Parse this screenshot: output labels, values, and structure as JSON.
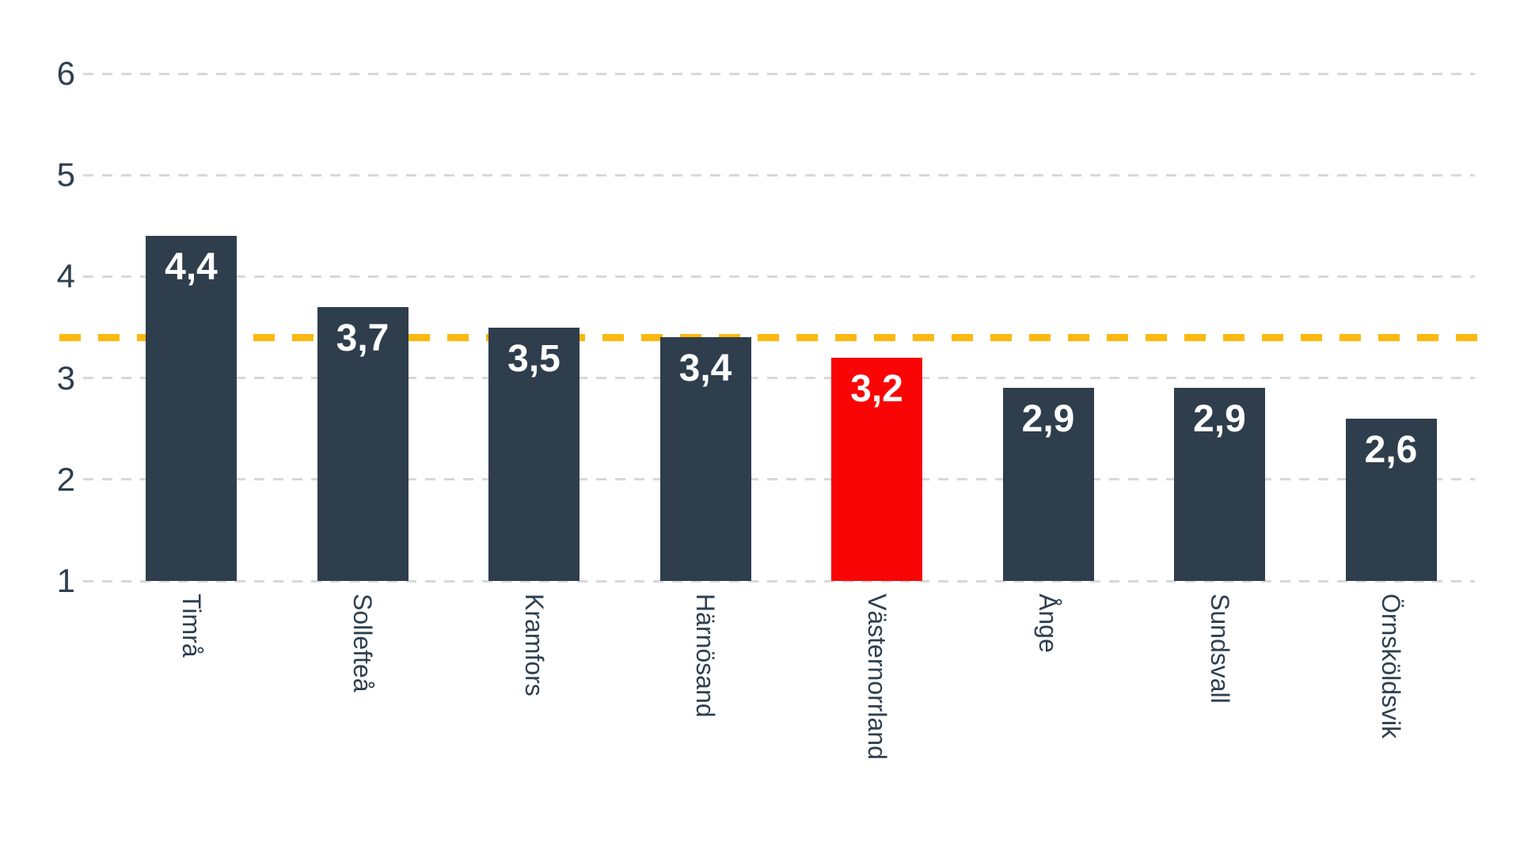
{
  "chart_data": {
    "type": "bar",
    "title": "",
    "xlabel": "",
    "ylabel": "",
    "categories": [
      "Timrå",
      "Sollefteå",
      "Kramfors",
      "Härnösand",
      "Västernorrland",
      "Ånge",
      "Sundsvall",
      "Örnsköldsvik"
    ],
    "values": [
      4.4,
      3.7,
      3.5,
      3.4,
      3.2,
      2.9,
      2.9,
      2.6
    ],
    "value_labels": [
      "4,4",
      "3,7",
      "3,5",
      "3,4",
      "3,2",
      "2,9",
      "2,9",
      "2,6"
    ],
    "highlight_index": 4,
    "highlight_category": "Västernorrland",
    "baseline_value": 1,
    "yticks": [
      6,
      5,
      4,
      3,
      2,
      1
    ],
    "ylim": [
      1,
      6.35
    ],
    "grid": "horizontal-dashed",
    "legend": "none",
    "reference_line": {
      "value": 3.4,
      "style": "dashed",
      "color": "#fbb80e"
    },
    "colors": {
      "bar": "#2f3e4c",
      "highlight_bar": "#fa0505",
      "gridline": "#d8d8d8",
      "axis_text": "#2e3f50",
      "bar_value_text": "#ffffff",
      "background": "#ffffff"
    }
  }
}
